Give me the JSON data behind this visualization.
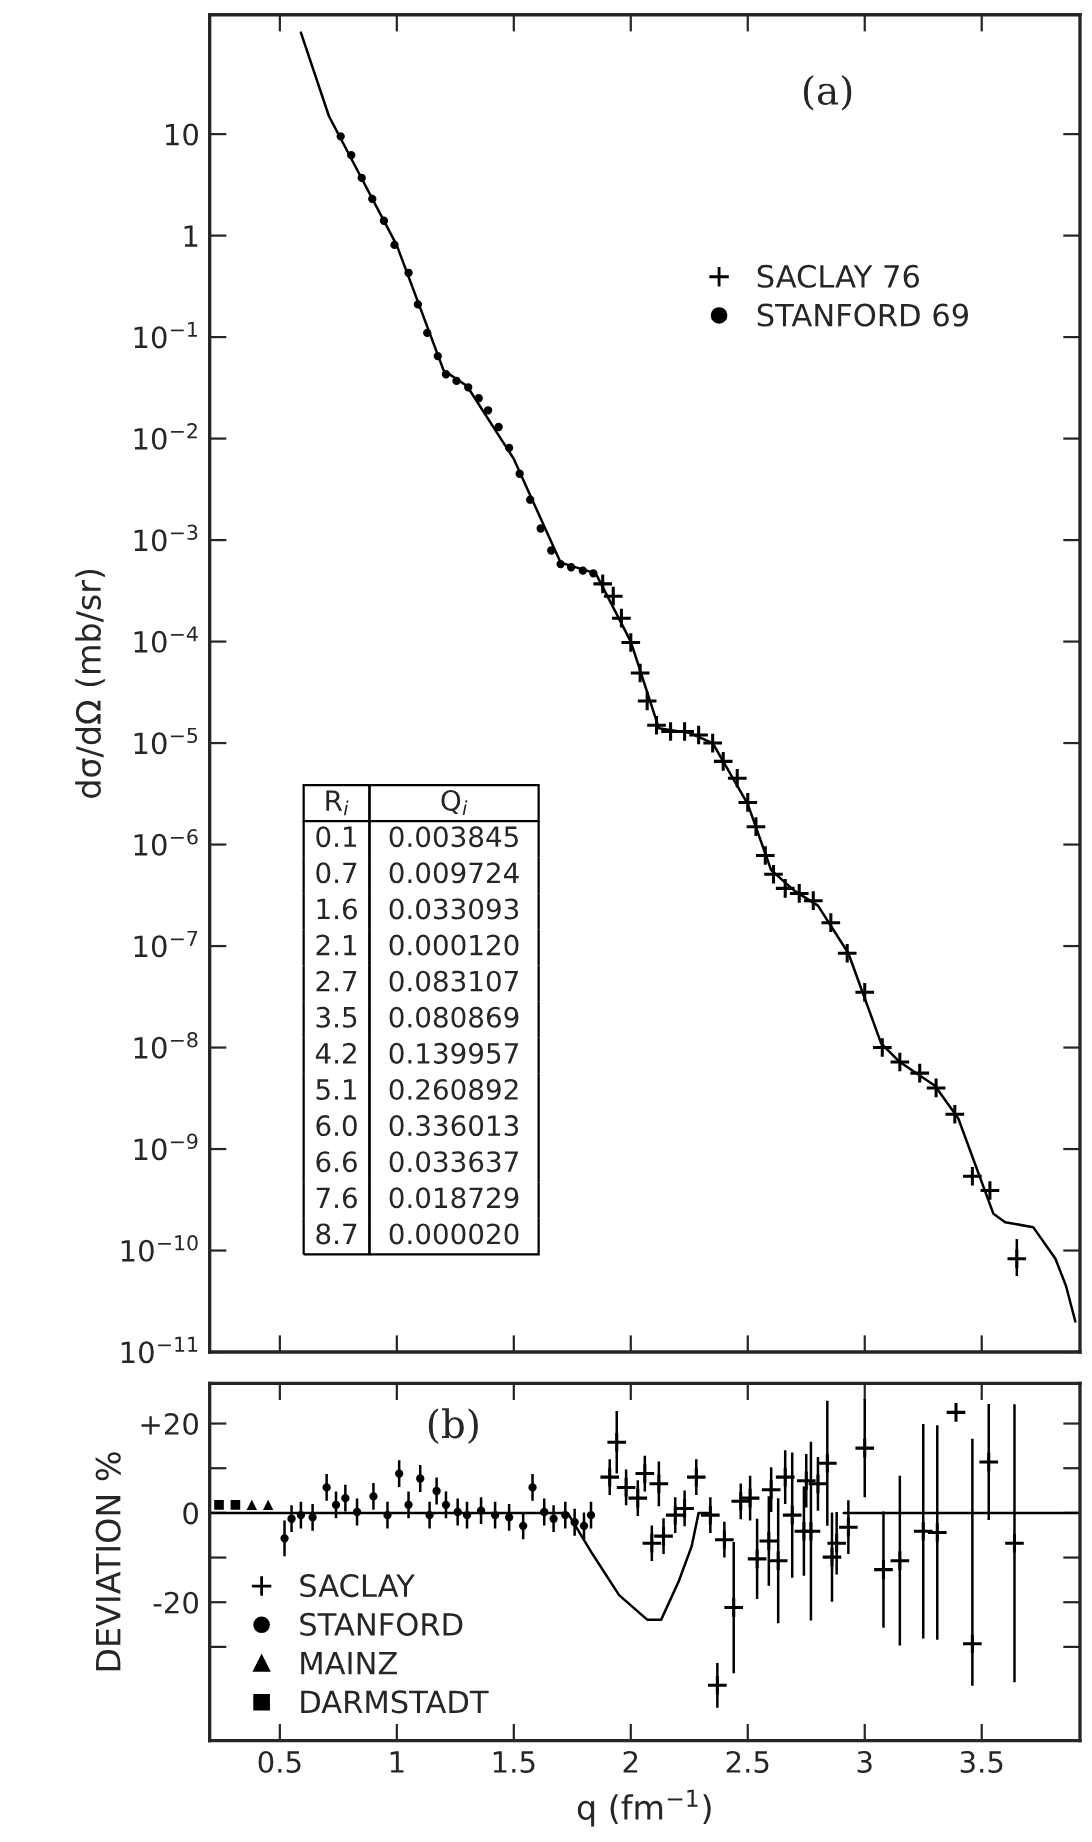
{
  "chart_data": [
    {
      "type": "scatter",
      "title": "(a)",
      "ylabel": "dσ/dΩ (mb/sr)",
      "log": true,
      "legend": "top right",
      "tick_labels": "y",
      "xlim": [
        0.2,
        3.92
      ],
      "xticks": [
        0.5,
        1,
        1.5,
        2,
        2.5,
        3,
        3.5
      ],
      "ylim": [
        1e-11,
        150
      ],
      "yticks": [
        {
          "value": 1e-11,
          "label": "10$^{−11}$"
        },
        {
          "value": 1e-10,
          "label": "10$^{−10}$"
        },
        {
          "value": 1e-09,
          "label": "10$^{−9}$"
        },
        {
          "value": 1e-08,
          "label": "10$^{−8}$"
        },
        {
          "value": 1e-07,
          "label": "10$^{−7}$"
        },
        {
          "value": 1e-06,
          "label": "10$^{−6}$"
        },
        {
          "value": 1e-05,
          "label": "10$^{−5}$"
        },
        {
          "value": 0.0001,
          "label": "10$^{−4}$"
        },
        {
          "value": 0.001,
          "label": "10$^{−3}$"
        },
        {
          "value": 0.01,
          "label": "10$^{−2}$"
        },
        {
          "value": 0.1,
          "label": "10$^{−1}$"
        },
        1,
        10
      ],
      "annotations": [
        "R$_{i}$",
        "Q$_{i}$",
        "0.1",
        "0.003845",
        "0.7",
        "0.009724",
        "1.6",
        "0.033093",
        "2.1",
        "0.000120",
        "2.7",
        "0.083107",
        "3.5",
        "0.080869",
        "4.2",
        "0.139957",
        "5.1",
        "0.260892",
        "6.0",
        "0.336013",
        "6.6",
        "0.033637",
        "7.6",
        "0.018729",
        "8.7",
        "0.000020"
      ],
      "series": [
        {
          "type": "line",
          "color": "#000000",
          "line_style": "solid",
          "marker": "none",
          "x": [
            0.59,
            0.71,
            1.0,
            1.2,
            1.3,
            1.5,
            1.7,
            1.85,
            2.0,
            2.12,
            2.25,
            2.35,
            2.5,
            2.6,
            2.7,
            2.8,
            2.93,
            3.07,
            3.15,
            3.3,
            3.4,
            3.55,
            3.6,
            3.72,
            3.815,
            3.86,
            3.9
          ],
          "values": [
            100,
            15,
            0.8,
            0.047,
            0.033,
            0.0063,
            0.0006,
            0.00047,
            0.0001,
            1.4e-05,
            1.26e-05,
            1e-05,
            2.5e-06,
            5.6e-07,
            3.5e-07,
            2.5e-07,
            8.5e-08,
            1.1e-08,
            7.2e-09,
            4.2e-09,
            2e-09,
            2.3e-10,
            1.9e-10,
            1.7e-10,
            8.3e-11,
            4.5e-11,
            2e-11
          ]
        },
        {
          "name": "SACLAY 76",
          "marker": "cross",
          "color": "#000000",
          "x": [
            1.88,
            1.925,
            1.96,
            2.0,
            2.04,
            2.07,
            2.11,
            2.17,
            2.23,
            2.29,
            2.35,
            2.395,
            2.455,
            2.5,
            2.535,
            2.575,
            2.61,
            2.66,
            2.72,
            2.78,
            2.855,
            2.925,
            3.0,
            3.075,
            3.15,
            3.235,
            3.305,
            3.385,
            3.46,
            3.535,
            3.65
          ],
          "values": [
            0.00037,
            0.00028,
            0.00017,
            9.8e-05,
            4.9e-05,
            2.6e-05,
            1.5e-05,
            1.3e-05,
            1.3e-05,
            1.2e-05,
            1e-05,
            6.6e-06,
            4.5e-06,
            2.6e-06,
            1.5e-06,
            7.8e-07,
            5.1e-07,
            3.7e-07,
            3.3e-07,
            2.8e-07,
            1.7e-07,
            8.5e-08,
            3.5e-08,
            1e-08,
            7.2e-09,
            5.6e-09,
            4e-09,
            2.2e-09,
            5.4e-10,
            3.9e-10,
            8.3e-11
          ],
          "errors": [
            null,
            null,
            null,
            null,
            null,
            null,
            null,
            null,
            null,
            null,
            null,
            null,
            null,
            null,
            null,
            null,
            null,
            null,
            null,
            null,
            null,
            null,
            null,
            null,
            null,
            null,
            null,
            null,
            null,
            null,
            [
              5.6e-11,
              1.3e-10
            ]
          ]
        },
        {
          "name": "STANFORD 69",
          "marker": "circle",
          "color": "#000000",
          "x": [
            0.76,
            0.805,
            0.85,
            0.895,
            0.945,
            0.99,
            1.05,
            1.09,
            1.13,
            1.175,
            1.21,
            1.255,
            1.305,
            1.35,
            1.39,
            1.435,
            1.48,
            1.525,
            1.57,
            1.615,
            1.66,
            1.7,
            1.745,
            1.795,
            1.84
          ],
          "values": [
            9.5,
            6.2,
            3.7,
            2.3,
            1.4,
            0.81,
            0.43,
            0.21,
            0.11,
            0.065,
            0.043,
            0.037,
            0.032,
            0.025,
            0.019,
            0.013,
            0.0081,
            0.0045,
            0.0025,
            0.0013,
            0.00079,
            0.00058,
            0.00054,
            0.0005,
            0.00047
          ]
        }
      ]
    },
    {
      "type": "scatter",
      "title": "(b)",
      "xlabel": "q (fm$^{−1}$)",
      "ylabel": "DEVIATION %",
      "legend": "bottom left",
      "xlim": [
        0.2,
        3.92
      ],
      "xticks": [
        0.5,
        1,
        1.5,
        2,
        2.5,
        3,
        3.5
      ],
      "ylim": [
        -51,
        29
      ],
      "yticks": [
        {
          "value": 20,
          "label": "+20"
        },
        {
          "value": 10,
          "label": null
        },
        0,
        {
          "value": -10,
          "label": null
        },
        -20,
        {
          "value": -30,
          "label": null
        }
      ],
      "series": [
        {
          "type": "line",
          "color": "#000000",
          "line_style": "solid",
          "marker": "none",
          "x": [
            0.2,
            0.47,
            1.73,
            1.835,
            1.95,
            2.07,
            2.13,
            2.205,
            2.26,
            2.29,
            2.33,
            2.6,
            2.91,
            3.92
          ],
          "values": [
            0,
            0,
            0,
            -9.1,
            -18.4,
            -23.9,
            -23.9,
            -15.3,
            -7.5,
            0,
            0,
            null,
            0,
            0
          ]
        },
        {
          "name": "SACLAY",
          "marker": "cross",
          "color": "#000000",
          "x": [
            1.91,
            1.94,
            1.98,
            2.03,
            2.06,
            2.09,
            2.12,
            2.14,
            2.19,
            2.23,
            2.28,
            2.34,
            2.37,
            2.4,
            2.44,
            2.47,
            2.51,
            2.54,
            2.59,
            2.6,
            2.63,
            2.66,
            2.69,
            2.74,
            2.75,
            2.77,
            2.8,
            2.84,
            2.86,
            2.88,
            2.93,
            3.0,
            3.08,
            3.15,
            3.25,
            3.31,
            3.39,
            3.46,
            3.53,
            3.64
          ],
          "values": [
            8,
            15.8,
            5.7,
            3.3,
            8.8,
            -6.8,
            6.5,
            -5.2,
            -0.5,
            1,
            8,
            -0.5,
            -38.6,
            -6,
            -21.2,
            2.6,
            3.3,
            -10.3,
            -6.3,
            5.2,
            -10.7,
            8,
            -0.5,
            -4.1,
            7.2,
            -4.1,
            6.5,
            11.1,
            -9.9,
            -6.8,
            -3.2,
            14.5,
            -12.7,
            -10.7,
            -4.1,
            -4.4,
            22.5,
            -29.3,
            11.4,
            -6.8
          ],
          "errors": [
            4,
            7,
            4,
            4,
            4,
            4,
            5,
            4,
            4,
            4,
            4,
            4,
            5,
            4,
            14.7,
            4,
            5,
            9,
            10,
            5,
            14,
            6,
            14,
            10,
            6,
            20,
            6,
            14,
            10,
            7,
            6,
            11,
            13,
            19,
            24,
            24,
            null,
            [
              -38.7,
              16.6
            ],
            13,
            [
              -37.9,
              24.3
            ]
          ]
        },
        {
          "name": "STANFORD",
          "marker": "circle",
          "color": "#000000",
          "x": [
            0.52,
            0.55,
            0.59,
            0.64,
            0.7,
            0.74,
            0.78,
            0.83,
            0.9,
            0.96,
            1.01,
            1.05,
            1.1,
            1.14,
            1.17,
            1.21,
            1.26,
            1.3,
            1.36,
            1.42,
            1.48,
            1.54,
            1.58,
            1.63,
            1.67,
            1.72,
            1.76,
            1.8,
            1.83
          ],
          "values": [
            -5.7,
            -1.3,
            -0.5,
            -1,
            5.7,
            1.8,
            3.3,
            0.2,
            3.7,
            -0.5,
            8.8,
            1.8,
            7.7,
            -0.5,
            4.9,
            1.8,
            0.2,
            -0.5,
            0.5,
            -0.5,
            -1,
            -2.9,
            5.7,
            0.2,
            -1.3,
            -0.5,
            -2.1,
            -2.9,
            -0.5
          ],
          "errors": [
            4,
            3,
            3,
            3,
            3,
            3,
            3,
            3,
            3,
            3,
            3,
            3,
            3,
            3,
            3,
            3,
            3,
            3,
            3,
            3,
            3,
            3,
            3,
            3,
            3,
            3,
            3,
            3,
            3
          ]
        },
        {
          "name": "MAINZ",
          "marker": "triangle",
          "color": "#000000",
          "x": [
            0.38,
            0.45
          ],
          "values": [
            1.8,
            1.8
          ]
        },
        {
          "name": "DARMSTADT",
          "marker": "square",
          "color": "#000000",
          "x": [
            0.24,
            0.31
          ],
          "values": [
            1.8,
            1.8
          ]
        }
      ]
    }
  ]
}
